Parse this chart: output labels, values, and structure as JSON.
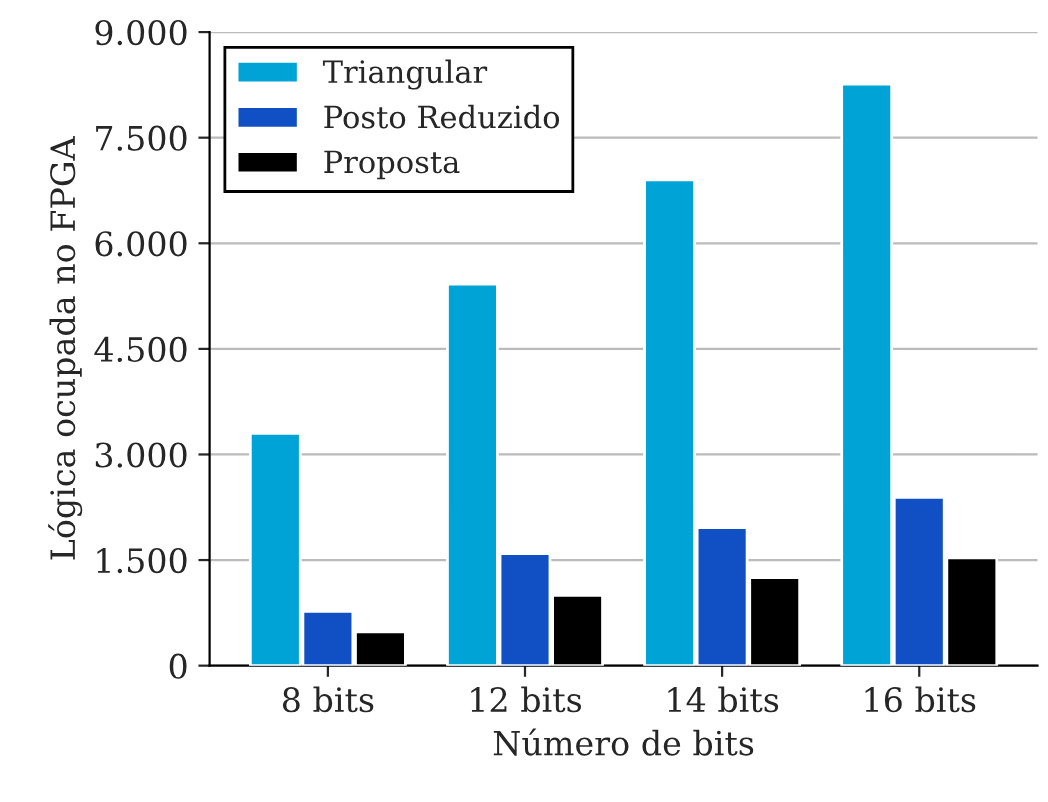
{
  "chart_data": {
    "type": "bar",
    "xlabel": "Número de bits",
    "ylabel": "Lógica ocupada no FPGA",
    "categories": [
      "8 bits",
      "12 bits",
      "14 bits",
      "16 bits"
    ],
    "series": [
      {
        "name": "Triangular",
        "color": "#00a3d6",
        "values": [
          3300,
          5420,
          6900,
          8260
        ]
      },
      {
        "name": "Posto Reduzido",
        "color": "#1150c4",
        "values": [
          770,
          1590,
          1960,
          2390
        ]
      },
      {
        "name": "Proposta",
        "color": "#000000",
        "values": [
          480,
          1000,
          1250,
          1530
        ]
      }
    ],
    "ylim": [
      0,
      9000
    ],
    "yticks": [
      0,
      {
        "value": 1500,
        "label": "1.500"
      },
      {
        "value": 3000,
        "label": "3.000"
      },
      {
        "value": 4500,
        "label": "4.500"
      },
      {
        "value": 6000,
        "label": "6.000"
      },
      {
        "value": 7500,
        "label": "7.500"
      },
      {
        "value": 9000,
        "label": "9.000"
      }
    ],
    "grid": "y",
    "legend": "top left"
  }
}
